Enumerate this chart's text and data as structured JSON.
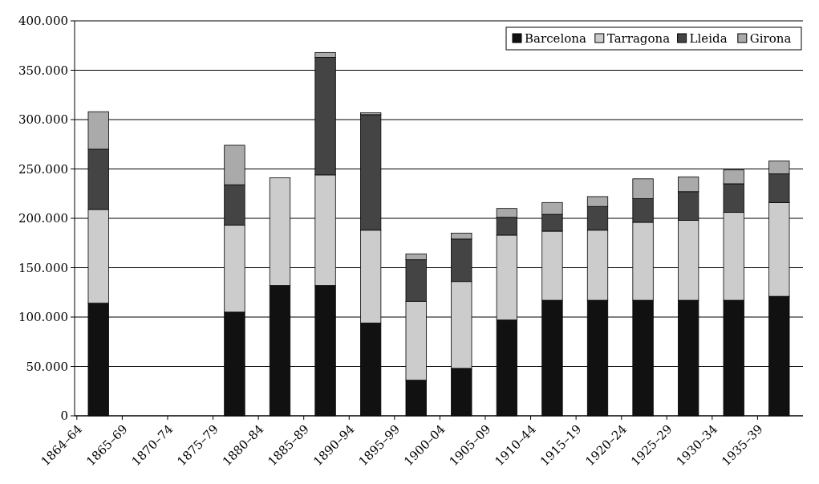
{
  "chart_data": {
    "type": "bar",
    "stacked": true,
    "categories": [
      "1864–64",
      "1865–69",
      "1870–74",
      "1875–79",
      "1880–84",
      "1885–89",
      "1890–94",
      "1895–99",
      "1900–04",
      "1905–09",
      "1910–44",
      "1915–19",
      "1920–24",
      "1925–29",
      "1930–34",
      "1935–39"
    ],
    "series": [
      {
        "name": "Barcelona",
        "color": "#111111",
        "values": [
          114000,
          null,
          null,
          105000,
          132000,
          132000,
          94000,
          36000,
          48000,
          97000,
          117000,
          117000,
          117000,
          117000,
          117000,
          121000
        ]
      },
      {
        "name": "Tarragona",
        "color": "#cccccc",
        "values": [
          95000,
          null,
          null,
          88000,
          109000,
          112000,
          94000,
          80000,
          88000,
          86000,
          70000,
          71000,
          79000,
          81000,
          89000,
          95000
        ]
      },
      {
        "name": "Lleida",
        "color": "#444444",
        "values": [
          61000,
          null,
          null,
          41000,
          null,
          119000,
          117000,
          42000,
          43000,
          18000,
          17000,
          24000,
          24000,
          29000,
          29000,
          29000
        ]
      },
      {
        "name": "Girona",
        "color": "#aaaaaa",
        "values": [
          38000,
          null,
          null,
          40000,
          null,
          5000,
          2000,
          6000,
          6000,
          9000,
          12000,
          10000,
          20000,
          15000,
          14000,
          13000
        ]
      }
    ],
    "ylim": [
      0,
      400000
    ],
    "yticks": [
      {
        "value": 0,
        "label": "0"
      },
      {
        "value": 50000,
        "label": "50.000"
      },
      {
        "value": 100000,
        "label": "100.000"
      },
      {
        "value": 150000,
        "label": "150.000"
      },
      {
        "value": 200000,
        "label": "200.000"
      },
      {
        "value": 250000,
        "label": "250.000"
      },
      {
        "value": 300000,
        "label": "300.000"
      },
      {
        "value": 350000,
        "label": "350.000"
      },
      {
        "value": 400000,
        "label": "400.000"
      }
    ],
    "grid": "y",
    "legend": "top right"
  }
}
